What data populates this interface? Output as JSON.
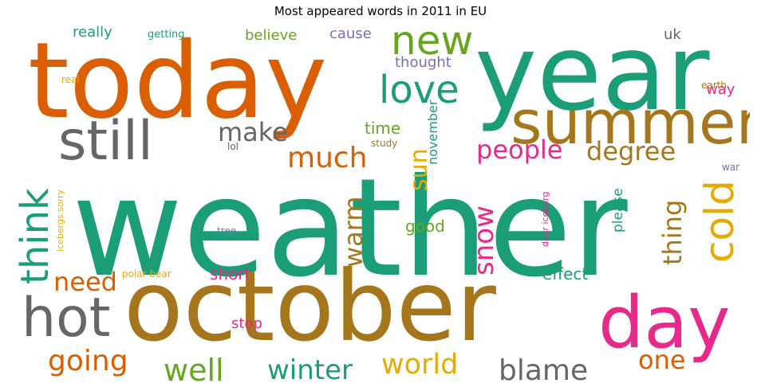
{
  "chart_data": {
    "type": "wordcloud",
    "title": "Most appeared words in 2011 in EU",
    "words": [
      {
        "text": "weather",
        "color": "#1b9e77"
      },
      {
        "text": "today",
        "color": "#d95f02"
      },
      {
        "text": "year",
        "color": "#1b9e77"
      },
      {
        "text": "october",
        "color": "#a6761d"
      },
      {
        "text": "day",
        "color": "#e7298a"
      },
      {
        "text": "summer",
        "color": "#a6761d"
      },
      {
        "text": "still",
        "color": "#666666"
      },
      {
        "text": "hot",
        "color": "#666666"
      },
      {
        "text": "new",
        "color": "#66a61e"
      },
      {
        "text": "love",
        "color": "#1b9e77"
      },
      {
        "text": "cold",
        "color": "#e6ab02"
      },
      {
        "text": "think",
        "color": "#1b9e77"
      },
      {
        "text": "people",
        "color": "#e7298a"
      },
      {
        "text": "degree",
        "color": "#a6761d"
      },
      {
        "text": "much",
        "color": "#d95f02"
      },
      {
        "text": "make",
        "color": "#666666"
      },
      {
        "text": "world",
        "color": "#e6ab02"
      },
      {
        "text": "winter",
        "color": "#1b9e77"
      },
      {
        "text": "going",
        "color": "#d95f02"
      },
      {
        "text": "well",
        "color": "#66a61e"
      },
      {
        "text": "blame",
        "color": "#666666"
      },
      {
        "text": "one",
        "color": "#d95f02"
      },
      {
        "text": "need",
        "color": "#d95f02"
      },
      {
        "text": "thing",
        "color": "#a6761d"
      },
      {
        "text": "warm",
        "color": "#a6761d"
      },
      {
        "text": "snow",
        "color": "#e7298a"
      },
      {
        "text": "sun",
        "color": "#e6ab02"
      },
      {
        "text": "time",
        "color": "#66a61e"
      },
      {
        "text": "good",
        "color": "#66a61e"
      },
      {
        "text": "short",
        "color": "#e7298a"
      },
      {
        "text": "effect",
        "color": "#1b9e77"
      },
      {
        "text": "november",
        "color": "#1b9e77"
      },
      {
        "text": "please",
        "color": "#1b9e77"
      },
      {
        "text": "stop",
        "color": "#e7298a"
      },
      {
        "text": "really",
        "color": "#1b9e77"
      },
      {
        "text": "believe",
        "color": "#66a61e"
      },
      {
        "text": "cause",
        "color": "#7570b3"
      },
      {
        "text": "thought",
        "color": "#7570b3"
      },
      {
        "text": "way",
        "color": "#e7298a"
      },
      {
        "text": "uk",
        "color": "#666666"
      },
      {
        "text": "getting",
        "color": "#1b9e77"
      },
      {
        "text": "real",
        "color": "#e6ab02"
      },
      {
        "text": "earth",
        "color": "#a6761d"
      },
      {
        "text": "study",
        "color": "#a6761d"
      },
      {
        "text": "lol",
        "color": "#666666"
      },
      {
        "text": "war",
        "color": "#7570b3"
      },
      {
        "text": "tree",
        "color": "#7570b3"
      },
      {
        "text": "polar bear",
        "color": "#e6ab02"
      },
      {
        "text": "icebergs sorry",
        "color": "#e6ab02"
      },
      {
        "text": "dear iceberg",
        "color": "#e7298a"
      }
    ]
  }
}
